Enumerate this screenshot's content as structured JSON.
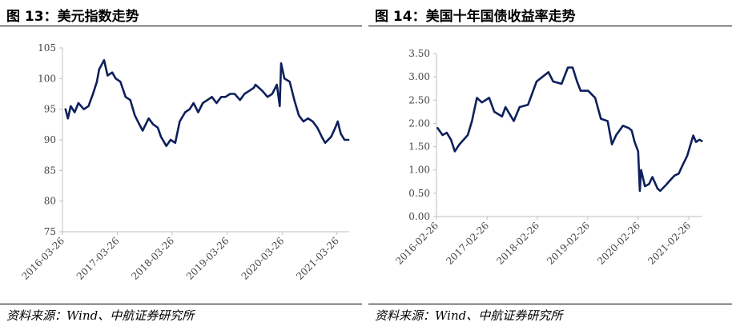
{
  "panels": [
    {
      "title": "图 13：美元指数走势",
      "source": "资料来源：Wind、中航证券研究所"
    },
    {
      "title": "图 14：美国十年国债收益率走势",
      "source": "资料来源：Wind、中航证券研究所"
    }
  ],
  "colors": {
    "series": "#0d1f5c",
    "axis": "#bfbfbf",
    "text": "#000000"
  },
  "chart_data": [
    {
      "type": "line",
      "title": "图 13：美元指数走势",
      "xlabel": "",
      "ylabel": "",
      "ylim": [
        75,
        105
      ],
      "yticks": [
        75,
        80,
        85,
        90,
        95,
        100,
        105
      ],
      "xticks": [
        "2016-03-26",
        "2017-03-26",
        "2018-03-26",
        "2019-03-26",
        "2020-03-26",
        "2021-03-26"
      ],
      "xlim": [
        "2016-03-26",
        "2021-06-15"
      ],
      "grid": false,
      "series": [
        {
          "x": [
            "2016-04-15",
            "2016-05-01",
            "2016-05-20",
            "2016-06-15",
            "2016-07-10",
            "2016-08-15",
            "2016-09-15",
            "2016-10-15",
            "2016-11-10",
            "2016-11-25",
            "2016-12-28",
            "2017-01-20",
            "2017-02-20",
            "2017-03-15",
            "2017-04-15",
            "2017-05-20",
            "2017-06-20",
            "2017-07-20",
            "2017-08-20",
            "2017-09-10",
            "2017-10-20",
            "2017-11-20",
            "2017-12-20",
            "2018-01-10",
            "2018-02-15",
            "2018-03-15",
            "2018-04-15",
            "2018-05-15",
            "2018-06-20",
            "2018-07-20",
            "2018-08-15",
            "2018-09-15",
            "2018-10-15",
            "2018-11-15",
            "2018-12-15",
            "2019-01-15",
            "2019-02-15",
            "2019-03-15",
            "2019-04-15",
            "2019-05-15",
            "2019-06-20",
            "2019-07-20",
            "2019-08-20",
            "2019-09-20",
            "2019-10-01",
            "2019-11-15",
            "2019-12-20",
            "2020-01-20",
            "2020-02-20",
            "2020-03-10",
            "2020-03-19",
            "2020-04-10",
            "2020-05-15",
            "2020-06-15",
            "2020-07-15",
            "2020-08-15",
            "2020-09-15",
            "2020-10-15",
            "2020-11-15",
            "2020-12-15",
            "2021-01-06",
            "2021-02-15",
            "2021-03-15",
            "2021-03-31",
            "2021-04-20",
            "2021-05-15",
            "2021-06-10"
          ],
          "y": [
            95.0,
            93.5,
            95.5,
            94.5,
            96.0,
            95.0,
            95.5,
            97.5,
            99.5,
            101.5,
            103.0,
            100.5,
            101.0,
            100.0,
            99.5,
            97.0,
            96.5,
            94.0,
            92.5,
            91.5,
            93.5,
            92.5,
            92.0,
            90.5,
            89.0,
            90.0,
            89.5,
            93.0,
            94.5,
            95.0,
            96.0,
            94.5,
            96.0,
            96.5,
            97.0,
            96.0,
            97.0,
            97.0,
            97.5,
            97.5,
            96.5,
            97.5,
            98.0,
            98.5,
            99.0,
            98.0,
            97.0,
            97.5,
            99.0,
            95.5,
            102.5,
            100.0,
            99.5,
            96.5,
            94.0,
            93.0,
            93.5,
            93.0,
            92.0,
            90.5,
            89.5,
            90.5,
            92.0,
            93.0,
            91.0,
            90.0,
            90.0
          ]
        }
      ]
    },
    {
      "type": "line",
      "title": "图 14：美国十年国债收益率走势",
      "xlabel": "",
      "ylabel": "",
      "ylim": [
        0,
        3.5
      ],
      "yticks": [
        "0.00",
        "0.50",
        "1.00",
        "1.50",
        "2.00",
        "2.50",
        "3.00",
        "3.50"
      ],
      "xticks": [
        "2016-02-26",
        "2017-02-26",
        "2018-02-26",
        "2019-02-26",
        "2020-02-26",
        "2021-02-26"
      ],
      "xlim": [
        "2016-02-26",
        "2021-06-05"
      ],
      "grid": false,
      "series": [
        {
          "x": [
            "2016-03-05",
            "2016-04-10",
            "2016-05-10",
            "2016-06-10",
            "2016-07-08",
            "2016-08-10",
            "2016-09-10",
            "2016-10-10",
            "2016-11-09",
            "2016-12-15",
            "2017-01-20",
            "2017-03-14",
            "2017-04-20",
            "2017-06-15",
            "2017-07-10",
            "2017-09-08",
            "2017-10-20",
            "2017-12-20",
            "2018-02-20",
            "2018-05-17",
            "2018-06-20",
            "2018-08-20",
            "2018-10-05",
            "2018-11-08",
            "2018-12-10",
            "2019-01-05",
            "2019-03-01",
            "2019-04-20",
            "2019-06-01",
            "2019-07-20",
            "2019-08-20",
            "2019-09-20",
            "2019-11-08",
            "2019-12-20",
            "2020-01-10",
            "2020-01-31",
            "2020-02-26",
            "2020-03-09",
            "2020-03-18",
            "2020-04-15",
            "2020-05-15",
            "2020-06-08",
            "2020-07-15",
            "2020-08-04",
            "2020-09-15",
            "2020-10-15",
            "2020-11-15",
            "2020-12-15",
            "2021-01-12",
            "2021-02-15",
            "2021-03-31",
            "2021-04-20",
            "2021-05-15",
            "2021-06-01"
          ],
          "y": [
            1.9,
            1.75,
            1.8,
            1.65,
            1.4,
            1.55,
            1.65,
            1.75,
            2.05,
            2.55,
            2.45,
            2.55,
            2.25,
            2.15,
            2.35,
            2.05,
            2.35,
            2.4,
            2.9,
            3.1,
            2.9,
            2.85,
            3.2,
            3.2,
            2.9,
            2.7,
            2.7,
            2.55,
            2.1,
            2.05,
            1.55,
            1.75,
            1.95,
            1.9,
            1.85,
            1.6,
            1.4,
            0.55,
            1.0,
            0.65,
            0.7,
            0.85,
            0.6,
            0.55,
            0.68,
            0.78,
            0.88,
            0.92,
            1.1,
            1.3,
            1.74,
            1.6,
            1.65,
            1.62
          ]
        }
      ]
    }
  ]
}
